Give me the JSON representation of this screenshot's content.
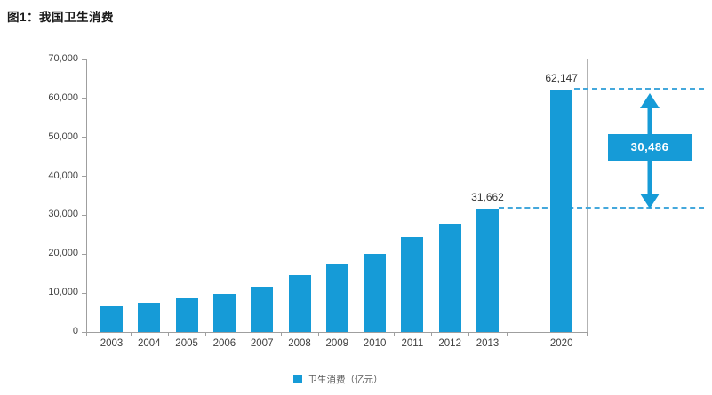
{
  "page": {
    "title": "图1：我国卫生消费"
  },
  "chart_data": {
    "type": "bar",
    "title": "图1：我国卫生消费",
    "categories": [
      "2003",
      "2004",
      "2005",
      "2006",
      "2007",
      "2008",
      "2009",
      "2010",
      "2011",
      "2012",
      "2013",
      "2020"
    ],
    "values": [
      6584,
      7590,
      8660,
      9843,
      11574,
      14535,
      17542,
      19980,
      24346,
      27847,
      31662,
      62147
    ],
    "xlabel": "",
    "ylabel": "",
    "ylim": [
      0,
      70000
    ],
    "ytick_step": 10000,
    "ytick_labels": [
      "0",
      "10,000",
      "20,000",
      "30,000",
      "40,000",
      "50,000",
      "60,000",
      "70,000"
    ],
    "grid": false,
    "legend_position": "bottom",
    "legend": [
      {
        "label": "卫生消费（亿元）",
        "color": "#169bd7"
      }
    ],
    "value_labels": {
      "2013": "31,662",
      "2020": "62,147"
    },
    "annotations": {
      "difference_label": "30,486",
      "dashed_line_values": [
        62147,
        31662
      ]
    },
    "colors": {
      "bar": "#169bd7",
      "dashed_line": "#44a8dc",
      "axis": "#9f9f9f",
      "tick_text": "#404040",
      "callout_bg": "#169bd7",
      "callout_text": "#ffffff"
    }
  }
}
